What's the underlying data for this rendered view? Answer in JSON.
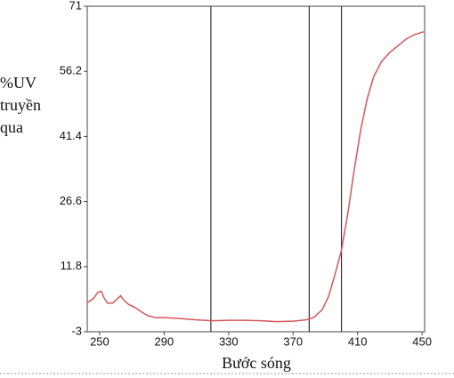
{
  "chart_data": {
    "type": "line",
    "ylabel": [
      "%UV",
      "truyền",
      "qua"
    ],
    "xlabel": "Bước sóng",
    "xlim": [
      242.3,
      451.6
    ],
    "ylim": [
      -3,
      71
    ],
    "xticks": [
      250,
      290,
      330,
      370,
      410,
      450
    ],
    "yticks": [
      -3,
      11.8,
      26.6,
      41.4,
      56.2,
      71
    ],
    "vlines": [
      319,
      380,
      400
    ],
    "x": [
      242,
      246,
      249,
      251,
      253,
      255,
      258,
      261,
      263,
      265,
      268,
      272,
      276,
      280,
      285,
      290,
      300,
      310,
      320,
      330,
      340,
      350,
      360,
      370,
      378,
      383,
      388,
      392,
      396,
      400,
      404,
      408,
      412,
      416,
      420,
      425,
      430,
      435,
      440,
      445,
      451
    ],
    "series": [
      {
        "color": "#d2575c",
        "values": [
          3.5,
          4.5,
          6.0,
          6.2,
          4.5,
          3.5,
          3.5,
          4.5,
          5.2,
          4.2,
          3.2,
          2.5,
          1.5,
          0.6,
          0.2,
          0.2,
          0,
          -0.3,
          -0.5,
          -0.4,
          -0.4,
          -0.5,
          -0.7,
          -0.6,
          -0.3,
          0.3,
          2,
          5,
          10,
          15.5,
          24,
          34,
          43,
          50,
          55,
          58.5,
          60.5,
          62,
          63.5,
          64.5,
          65.2
        ]
      }
    ]
  }
}
